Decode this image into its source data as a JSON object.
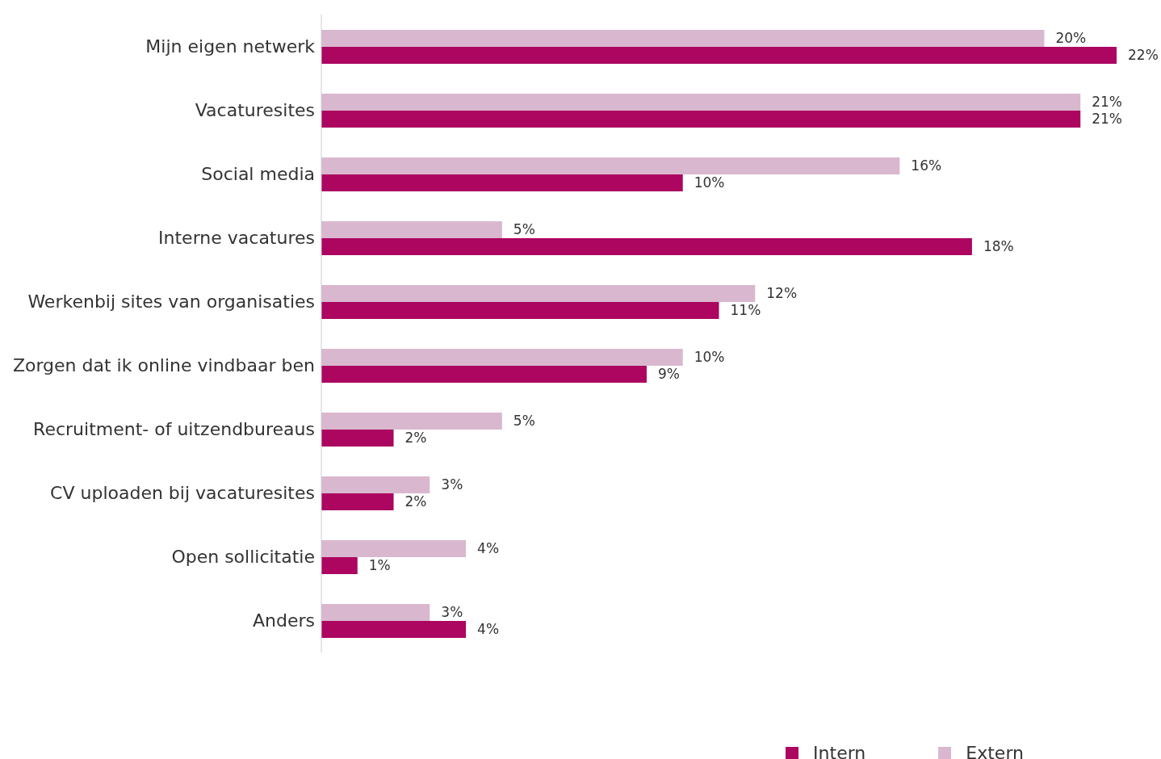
{
  "chart_data": {
    "type": "bar",
    "orientation": "horizontal",
    "categories": [
      "Mijn eigen netwerk",
      "Vacaturesites",
      "Social media",
      "Interne vacatures",
      "Werkenbij sites van organisaties",
      "Zorgen dat ik online vindbaar ben",
      "Recruitment- of uitzendbureaus",
      "CV uploaden bij vacaturesites",
      "Open sollicitatie",
      "Anders"
    ],
    "series": [
      {
        "name": "Extern",
        "color": "#d9b8cf",
        "values": [
          20,
          21,
          16,
          5,
          12,
          10,
          5,
          3,
          4,
          3
        ],
        "value_labels": [
          "20%",
          "21%",
          "16%",
          "5%",
          "12%",
          "10%",
          "5%",
          "3%",
          "4%",
          "3%"
        ]
      },
      {
        "name": "Intern",
        "color": "#ac0660",
        "values": [
          22,
          21,
          10,
          18,
          11,
          9,
          2,
          2,
          1,
          4
        ],
        "value_labels": [
          "22%",
          "21%",
          "10%",
          "18%",
          "11%",
          "9%",
          "2%",
          "2%",
          "1%",
          "4%"
        ]
      }
    ],
    "legend": "bottom right"
  }
}
